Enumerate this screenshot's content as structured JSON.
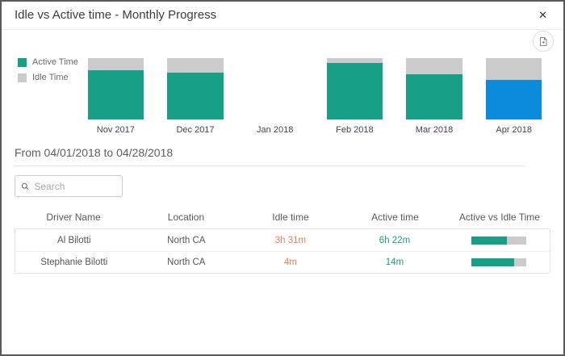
{
  "modal": {
    "title": "Idle vs Active time - Monthly Progress",
    "close_glyph": "✕"
  },
  "toolbar": {
    "export_icon": "export-image-icon"
  },
  "colors": {
    "active": "#17a086",
    "idle": "#cbcbcb",
    "selected": "#0b8bdb",
    "idle_text": "#e8835d",
    "active_text": "#17a086"
  },
  "chart_data": {
    "type": "bar",
    "stacked": true,
    "title": "Idle vs Active time - Monthly Progress",
    "categories": [
      "Nov 2017",
      "Dec 2017",
      "Jan 2018",
      "Feb 2018",
      "Mar 2018",
      "Apr 2018"
    ],
    "series": [
      {
        "name": "Active Time",
        "values": [
          80,
          76,
          0,
          92,
          74,
          64
        ],
        "color": "#17a086"
      },
      {
        "name": "Idle Time",
        "values": [
          20,
          24,
          0,
          8,
          26,
          36
        ],
        "color": "#cbcbcb"
      }
    ],
    "selected_category": "Apr 2018",
    "selected_color": "#0b8bdb",
    "legend_position": "left",
    "ylim": [
      0,
      100
    ],
    "grid": false
  },
  "filter": {
    "date_range": "From 04/01/2018 to 04/28/2018"
  },
  "search": {
    "placeholder": "Search"
  },
  "table": {
    "columns": [
      "Driver Name",
      "Location",
      "Idle time",
      "Active time",
      "Active vs Idle Time"
    ],
    "rows": [
      {
        "driver": "Al Bilotti",
        "location": "North CA",
        "idle": "3h 31m",
        "active": "6h 22m",
        "active_pct": 64
      },
      {
        "driver": "Stephanie Bilotti",
        "location": "North CA",
        "idle": "4m",
        "active": "14m",
        "active_pct": 78
      }
    ]
  }
}
